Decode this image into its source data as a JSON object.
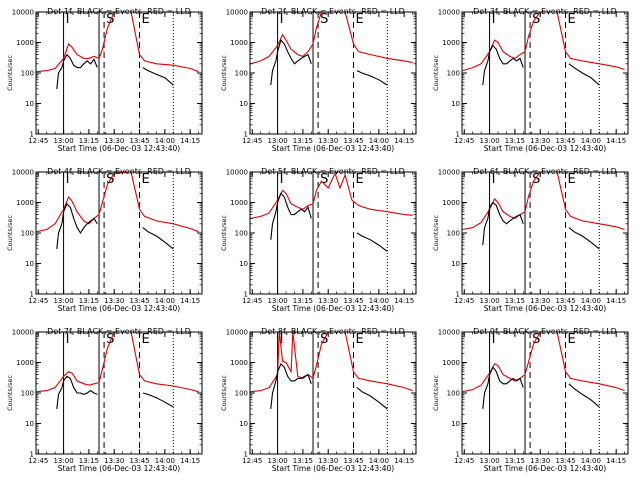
{
  "chart_data": {
    "type": "line",
    "layout": "3x3 grid of panels",
    "yscale": "log",
    "ylim": [
      1,
      10000
    ],
    "ylabel": "Counts/sec",
    "xlabel": "Start Time (06-Dec-03 12:43:40)",
    "xtick_labels": [
      "12:45",
      "13:00",
      "13:15",
      "13:30",
      "13:45",
      "14:00",
      "14:15"
    ],
    "ytick_labels": [
      "1",
      "10",
      "100",
      "1000",
      "10000"
    ],
    "xlim": [
      "12:43:40",
      "14:22:00"
    ],
    "series_colors": {
      "events": "#000000",
      "lld": "#e00000"
    },
    "interval_markers": [
      "I",
      "S",
      "E"
    ],
    "panels": [
      {
        "title": "Det 1f, BLACK = Events, RED = LLD",
        "solid_lines": [
          "13:00",
          "13:21"
        ],
        "dashed_lines": [
          "13:24",
          "13:45"
        ],
        "dotted_lines": [
          "14:05"
        ],
        "events": {
          "x": [
            "12:56",
            "12:57",
            "12:59",
            "13:00",
            "13:02",
            "13:04",
            "13:06",
            "13:08",
            "13:10",
            "13:12",
            "13:14",
            "13:16",
            "13:18",
            "13:20"
          ],
          "y": [
            30,
            100,
            150,
            250,
            400,
            300,
            180,
            150,
            150,
            200,
            250,
            200,
            280,
            150
          ]
        },
        "lld": {
          "x": [
            "12:44",
            "12:50",
            "12:55",
            "13:00",
            "13:03",
            "13:05",
            "13:08",
            "13:12",
            "13:15",
            "13:18",
            "13:21",
            "13:23",
            "13:26",
            "13:30",
            "13:40",
            "13:45",
            "13:48",
            "13:55",
            "14:05",
            "14:15",
            "14:20"
          ],
          "y": [
            110,
            120,
            140,
            300,
            900,
            700,
            400,
            300,
            300,
            350,
            300,
            600,
            3000,
            10000,
            10000,
            400,
            250,
            200,
            180,
            140,
            110
          ]
        },
        "events_late": {
          "x": [
            "13:47",
            "13:50",
            "13:55",
            "14:00",
            "14:05"
          ],
          "y": [
            150,
            120,
            90,
            70,
            40
          ]
        }
      },
      {
        "title": "Det 2f, BLACK = Events, RED = LLD",
        "solid_lines": [
          "13:00",
          "13:21"
        ],
        "dashed_lines": [
          "13:24",
          "13:45"
        ],
        "dotted_lines": [
          "14:05"
        ],
        "events": {
          "x": [
            "12:56",
            "12:57",
            "12:59",
            "13:00",
            "13:02",
            "13:04",
            "13:06",
            "13:08",
            "13:10",
            "13:12",
            "13:14",
            "13:16",
            "13:18",
            "13:20"
          ],
          "y": [
            40,
            120,
            250,
            500,
            1200,
            900,
            500,
            300,
            200,
            250,
            300,
            350,
            400,
            200
          ]
        },
        "lld": {
          "x": [
            "12:44",
            "12:50",
            "12:55",
            "13:00",
            "13:03",
            "13:05",
            "13:08",
            "13:12",
            "13:15",
            "13:18",
            "13:21",
            "13:23",
            "13:26",
            "13:30",
            "13:40",
            "13:45",
            "13:48",
            "13:55",
            "14:05",
            "14:15",
            "14:20"
          ],
          "y": [
            200,
            250,
            350,
            800,
            1800,
            1200,
            600,
            400,
            350,
            500,
            900,
            3000,
            10000,
            10000,
            10000,
            900,
            500,
            400,
            300,
            250,
            220
          ]
        },
        "events_late": {
          "x": [
            "13:47",
            "13:50",
            "13:55",
            "14:00",
            "14:05"
          ],
          "y": [
            120,
            100,
            80,
            60,
            40
          ]
        }
      },
      {
        "title": "Det 3f, BLACK = Events, RED = LLD",
        "solid_lines": [
          "13:00",
          "13:21"
        ],
        "dashed_lines": [
          "13:24",
          "13:45"
        ],
        "dotted_lines": [
          "14:05"
        ],
        "events": {
          "x": [
            "12:56",
            "12:57",
            "12:59",
            "13:00",
            "13:02",
            "13:04",
            "13:06",
            "13:08",
            "13:10",
            "13:12",
            "13:14",
            "13:16",
            "13:18",
            "13:20"
          ],
          "y": [
            40,
            120,
            250,
            500,
            800,
            600,
            300,
            200,
            200,
            250,
            300,
            250,
            300,
            150
          ]
        },
        "lld": {
          "x": [
            "12:44",
            "12:50",
            "12:55",
            "13:00",
            "13:03",
            "13:05",
            "13:08",
            "13:12",
            "13:15",
            "13:18",
            "13:21",
            "13:23",
            "13:26",
            "13:30",
            "13:40",
            "13:45",
            "13:48",
            "13:55",
            "14:05",
            "14:15",
            "14:20"
          ],
          "y": [
            120,
            150,
            200,
            500,
            1200,
            1000,
            500,
            350,
            300,
            400,
            500,
            1500,
            5000,
            10000,
            10000,
            500,
            300,
            250,
            200,
            160,
            130
          ]
        },
        "events_late": {
          "x": [
            "13:47",
            "13:50",
            "13:55",
            "14:00",
            "14:05"
          ],
          "y": [
            200,
            150,
            100,
            70,
            40
          ]
        }
      },
      {
        "title": "Det 4f, BLACK = Events, RED = LLD",
        "solid_lines": [
          "13:00",
          "13:21"
        ],
        "dashed_lines": [
          "13:24",
          "13:45"
        ],
        "dotted_lines": [
          "14:05"
        ],
        "events": {
          "x": [
            "12:56",
            "12:57",
            "12:59",
            "13:00",
            "13:02",
            "13:04",
            "13:06",
            "13:08",
            "13:10",
            "13:12",
            "13:14",
            "13:16",
            "13:18",
            "13:20"
          ],
          "y": [
            30,
            100,
            200,
            500,
            900,
            700,
            300,
            150,
            100,
            150,
            200,
            250,
            300,
            200
          ]
        },
        "lld": {
          "x": [
            "12:44",
            "12:50",
            "12:55",
            "13:00",
            "13:03",
            "13:05",
            "13:08",
            "13:12",
            "13:15",
            "13:18",
            "13:21",
            "13:23",
            "13:26",
            "13:30",
            "13:40",
            "13:45",
            "13:48",
            "13:55",
            "14:05",
            "14:15",
            "14:20"
          ],
          "y": [
            110,
            130,
            200,
            600,
            1500,
            1100,
            500,
            250,
            200,
            300,
            400,
            1000,
            4000,
            9000,
            10000,
            600,
            350,
            250,
            200,
            140,
            110
          ]
        },
        "events_late": {
          "x": [
            "13:47",
            "13:50",
            "13:55",
            "14:00",
            "14:05"
          ],
          "y": [
            150,
            110,
            80,
            50,
            30
          ]
        }
      },
      {
        "title": "Det 5f, BLACK = Events, RED = LLD",
        "solid_lines": [
          "13:00",
          "13:21"
        ],
        "dashed_lines": [
          "13:24",
          "13:45"
        ],
        "dotted_lines": [
          "14:05"
        ],
        "events": {
          "x": [
            "12:56",
            "12:57",
            "12:59",
            "13:00",
            "13:02",
            "13:04",
            "13:06",
            "13:08",
            "13:10",
            "13:12",
            "13:14",
            "13:16",
            "13:18",
            "13:20"
          ],
          "y": [
            60,
            200,
            500,
            1000,
            2000,
            1500,
            700,
            400,
            400,
            500,
            600,
            500,
            700,
            300
          ]
        },
        "lld": {
          "x": [
            "12:44",
            "12:50",
            "12:55",
            "13:00",
            "13:03",
            "13:05",
            "13:08",
            "13:12",
            "13:15",
            "13:18",
            "13:21",
            "13:23",
            "13:26",
            "13:30",
            "13:34",
            "13:37",
            "13:40",
            "13:44",
            "13:48",
            "13:55",
            "14:05",
            "14:15",
            "14:20"
          ],
          "y": [
            300,
            350,
            450,
            1200,
            2500,
            2000,
            900,
            700,
            600,
            800,
            900,
            2500,
            5000,
            3000,
            9000,
            3000,
            8000,
            1200,
            800,
            600,
            500,
            400,
            380
          ]
        },
        "events_late": {
          "x": [
            "13:47",
            "13:50",
            "13:55",
            "14:00",
            "14:05"
          ],
          "y": [
            100,
            80,
            60,
            40,
            25
          ]
        }
      },
      {
        "title": "Det 6f, BLACK = Events, RED = LLD",
        "solid_lines": [
          "13:00",
          "13:21"
        ],
        "dashed_lines": [
          "13:24",
          "13:45"
        ],
        "dotted_lines": [
          "14:05"
        ],
        "events": {
          "x": [
            "12:56",
            "12:57",
            "12:59",
            "13:00",
            "13:02",
            "13:04",
            "13:06",
            "13:08",
            "13:10",
            "13:12",
            "13:14",
            "13:16",
            "13:18",
            "13:20"
          ],
          "y": [
            40,
            150,
            300,
            700,
            1000,
            800,
            400,
            250,
            200,
            250,
            300,
            350,
            400,
            200
          ]
        },
        "lld": {
          "x": [
            "12:44",
            "12:50",
            "12:55",
            "13:00",
            "13:03",
            "13:05",
            "13:08",
            "13:12",
            "13:15",
            "13:18",
            "13:21",
            "13:23",
            "13:26",
            "13:30",
            "13:40",
            "13:45",
            "13:48",
            "13:55",
            "14:05",
            "14:15",
            "14:20"
          ],
          "y": [
            130,
            150,
            220,
            600,
            1300,
            1000,
            500,
            350,
            300,
            400,
            500,
            1500,
            5000,
            10000,
            10000,
            600,
            350,
            250,
            200,
            160,
            130
          ]
        },
        "events_late": {
          "x": [
            "13:47",
            "13:50",
            "13:55",
            "14:00",
            "14:05"
          ],
          "y": [
            150,
            110,
            80,
            50,
            30
          ]
        }
      },
      {
        "title": "Det 7f, BLACK = Events, RED = LLD",
        "solid_lines": [
          "13:00",
          "13:21"
        ],
        "dashed_lines": [
          "13:24",
          "13:45"
        ],
        "dotted_lines": [
          "14:05"
        ],
        "events": {
          "x": [
            "12:56",
            "12:57",
            "12:59",
            "13:00",
            "13:02",
            "13:04",
            "13:06",
            "13:08",
            "13:10",
            "13:12",
            "13:14",
            "13:16",
            "13:18",
            "13:20"
          ],
          "y": [
            30,
            90,
            150,
            250,
            350,
            300,
            150,
            100,
            100,
            90,
            100,
            120,
            100,
            90
          ]
        },
        "lld": {
          "x": [
            "12:44",
            "12:50",
            "12:55",
            "13:00",
            "13:03",
            "13:05",
            "13:08",
            "13:12",
            "13:15",
            "13:18",
            "13:21",
            "13:23",
            "13:26",
            "13:30",
            "13:40",
            "13:45",
            "13:48",
            "13:55",
            "14:05",
            "14:15",
            "14:20"
          ],
          "y": [
            110,
            120,
            150,
            350,
            500,
            450,
            250,
            200,
            180,
            200,
            220,
            600,
            3000,
            10000,
            10000,
            400,
            250,
            200,
            170,
            130,
            110
          ]
        },
        "events_late": {
          "x": [
            "13:47",
            "13:50",
            "13:55",
            "14:00",
            "14:05"
          ],
          "y": [
            100,
            90,
            70,
            50,
            35
          ]
        }
      },
      {
        "title": "Det 8f, BLACK = Events, RED = LLD",
        "solid_lines": [
          "13:00",
          "13:21"
        ],
        "dashed_lines": [
          "13:24",
          "13:45"
        ],
        "dotted_lines": [
          "14:05"
        ],
        "events": {
          "x": [
            "12:56",
            "12:57",
            "12:59",
            "13:00",
            "13:02",
            "13:04",
            "13:06",
            "13:08",
            "13:10",
            "13:12",
            "13:14",
            "13:16",
            "13:18",
            "13:20"
          ],
          "y": [
            30,
            100,
            250,
            500,
            900,
            700,
            350,
            250,
            250,
            300,
            300,
            350,
            400,
            200
          ]
        },
        "lld": {
          "x": [
            "12:44",
            "12:50",
            "12:55",
            "13:00",
            "13:01",
            "13:03",
            "13:05",
            "13:08",
            "13:09",
            "13:12",
            "13:15",
            "13:18",
            "13:21",
            "13:23",
            "13:26",
            "13:30",
            "13:40",
            "13:45",
            "13:48",
            "13:55",
            "14:05",
            "14:15",
            "14:20"
          ],
          "y": [
            110,
            120,
            150,
            400,
            10000,
            1100,
            1000,
            500,
            10000,
            350,
            300,
            400,
            300,
            800,
            4000,
            10000,
            10000,
            500,
            300,
            250,
            200,
            150,
            120
          ]
        },
        "events_late": {
          "x": [
            "13:47",
            "13:50",
            "13:55",
            "14:00",
            "14:05"
          ],
          "y": [
            150,
            110,
            80,
            50,
            30
          ]
        }
      },
      {
        "title": "Det 9f, BLACK = Events, RED = LLD",
        "solid_lines": [
          "13:00",
          "13:21"
        ],
        "dashed_lines": [
          "13:24",
          "13:45"
        ],
        "dotted_lines": [
          "14:05"
        ],
        "events": {
          "x": [
            "12:56",
            "12:57",
            "12:59",
            "13:00",
            "13:02",
            "13:04",
            "13:06",
            "13:08",
            "13:10",
            "13:12",
            "13:14",
            "13:16",
            "13:18",
            "13:20"
          ],
          "y": [
            30,
            100,
            200,
            400,
            700,
            500,
            250,
            200,
            200,
            250,
            300,
            250,
            300,
            150
          ]
        },
        "lld": {
          "x": [
            "12:44",
            "12:50",
            "12:55",
            "13:00",
            "13:03",
            "13:05",
            "13:08",
            "13:12",
            "13:15",
            "13:18",
            "13:21",
            "13:23",
            "13:26",
            "13:30",
            "13:40",
            "13:45",
            "13:48",
            "13:55",
            "14:05",
            "14:15",
            "14:20"
          ],
          "y": [
            110,
            130,
            180,
            450,
            900,
            800,
            400,
            300,
            250,
            300,
            400,
            1000,
            4000,
            10000,
            10000,
            500,
            300,
            250,
            200,
            150,
            120
          ]
        },
        "events_late": {
          "x": [
            "13:47",
            "13:50",
            "13:55",
            "14:00",
            "14:05"
          ],
          "y": [
            200,
            140,
            90,
            60,
            35
          ]
        }
      }
    ]
  }
}
